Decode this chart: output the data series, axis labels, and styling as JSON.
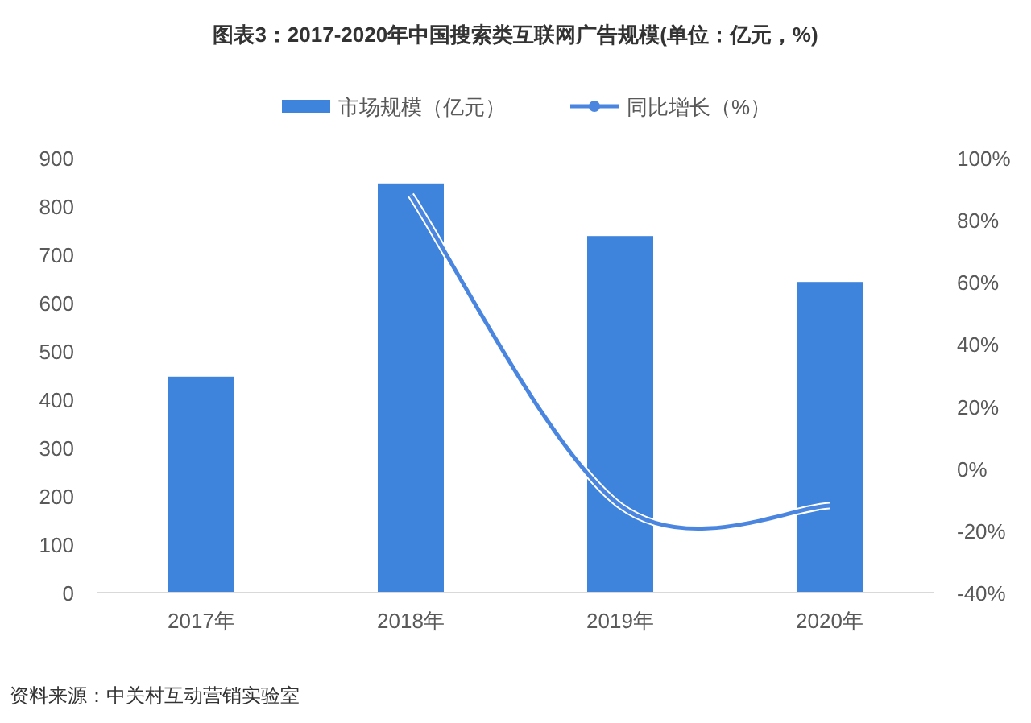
{
  "chart_data": {
    "type": "bar",
    "title": "图表3：2017-2020年中国搜索类互联网广告规模(单位：亿元，%)",
    "categories": [
      "2017年",
      "2018年",
      "2019年",
      "2020年"
    ],
    "series": [
      {
        "name": "市场规模（亿元）",
        "color": "#3e84dd",
        "values": [
          447,
          847,
          738,
          643
        ]
      },
      {
        "name": "同比增长（%）",
        "type": "line",
        "axis": "y2",
        "color": "#4a86e0",
        "values": [
          null,
          88,
          -12,
          -12
        ]
      }
    ],
    "ylim": [
      0,
      900
    ],
    "yticks": [
      0,
      100,
      200,
      300,
      400,
      500,
      600,
      700,
      800,
      900
    ],
    "y2lim": [
      -40,
      100
    ],
    "y2ticks": [
      {
        "value": -40,
        "label": "-40%"
      },
      {
        "value": -20,
        "label": "-20%"
      },
      {
        "value": 0,
        "label": "0%"
      },
      {
        "value": 20,
        "label": "20%"
      },
      {
        "value": 40,
        "label": "40%"
      },
      {
        "value": 60,
        "label": "60%"
      },
      {
        "value": 80,
        "label": "80%"
      },
      {
        "value": 100,
        "label": "100%"
      }
    ],
    "grid": false,
    "legend": "top",
    "annotations": [
      "资料来源：中关村互动营销实验室"
    ]
  }
}
